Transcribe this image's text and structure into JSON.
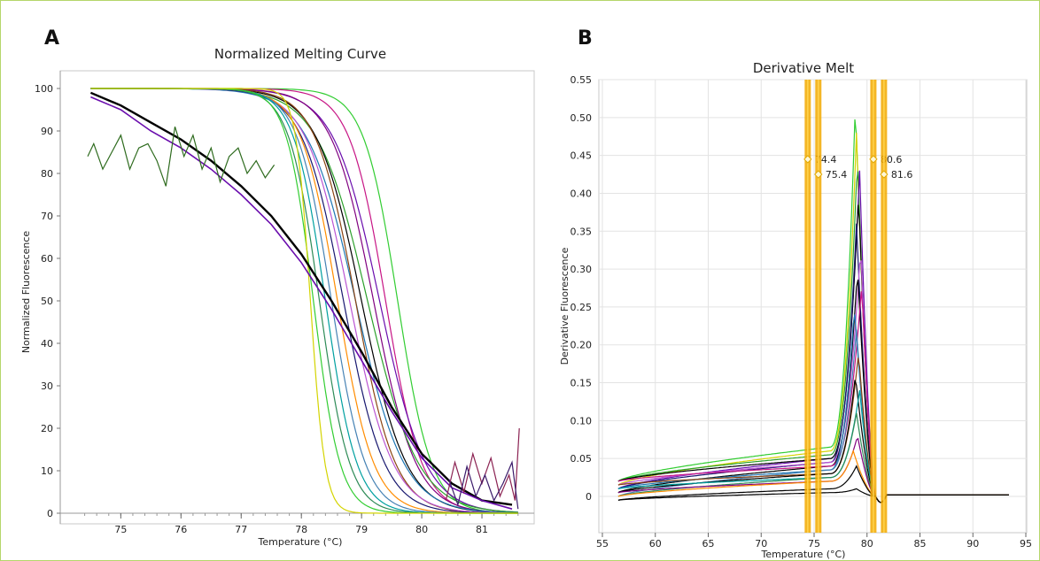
{
  "chart_data": [
    {
      "type": "line",
      "panel_label": "A",
      "title": "Normalized Melting Curve",
      "xlabel": "Temperature (°C)",
      "ylabel": "Normalized Fluorescence",
      "xlim": [
        74.2,
        81.75
      ],
      "ylim": [
        0,
        100
      ],
      "xticks": [
        75,
        76,
        77,
        78,
        79,
        80,
        81
      ],
      "yticks": [
        0,
        10,
        20,
        30,
        40,
        50,
        60,
        70,
        80,
        90,
        100
      ],
      "grid": false,
      "legend": "none",
      "colors": [
        "#2ca02c",
        "#c71585",
        "#1f77b4",
        "#6a0dad",
        "#000000",
        "#d4d400",
        "#2e8b57",
        "#8b4513",
        "#32cd32",
        "#ba55d3",
        "#191970",
        "#ff8c00",
        "#4682b4",
        "#006400",
        "#800080",
        "#00a0a0"
      ],
      "series": [
        {
          "type": "sigmoid",
          "tm": 79.6,
          "width": 0.28,
          "start": 74.5,
          "top": 100,
          "color": "#32cd32"
        },
        {
          "type": "sigmoid",
          "tm": 79.4,
          "width": 0.3,
          "start": 74.5,
          "top": 100,
          "color": "#c71585"
        },
        {
          "type": "sigmoid",
          "tm": 79.3,
          "width": 0.38,
          "start": 74.5,
          "top": 100,
          "color": "#6a0dad"
        },
        {
          "type": "sigmoid",
          "tm": 79.2,
          "width": 0.35,
          "start": 74.5,
          "top": 100,
          "color": "#800080"
        },
        {
          "type": "sigmoid",
          "tm": 79.1,
          "width": 0.42,
          "start": 74.5,
          "top": 100,
          "color": "#2ca02c"
        },
        {
          "type": "sigmoid",
          "tm": 79.0,
          "width": 0.37,
          "start": 74.5,
          "top": 100,
          "color": "#000000"
        },
        {
          "type": "sigmoid",
          "tm": 78.9,
          "width": 0.4,
          "start": 74.5,
          "top": 100,
          "color": "#1f77b4"
        },
        {
          "type": "sigmoid",
          "tm": 78.9,
          "width": 0.33,
          "start": 74.5,
          "top": 100,
          "color": "#8b4513"
        },
        {
          "type": "sigmoid",
          "tm": 78.8,
          "width": 0.36,
          "start": 74.5,
          "top": 100,
          "color": "#ba55d3"
        },
        {
          "type": "sigmoid",
          "tm": 78.7,
          "width": 0.34,
          "start": 74.5,
          "top": 100,
          "color": "#191970"
        },
        {
          "type": "sigmoid",
          "tm": 78.6,
          "width": 0.3,
          "start": 74.5,
          "top": 100,
          "color": "#ff8c00"
        },
        {
          "type": "sigmoid",
          "tm": 78.5,
          "width": 0.28,
          "start": 74.5,
          "top": 100,
          "color": "#4682b4"
        },
        {
          "type": "sigmoid",
          "tm": 78.4,
          "width": 0.26,
          "start": 74.5,
          "top": 100,
          "color": "#00a0a0"
        },
        {
          "type": "sigmoid",
          "tm": 78.3,
          "width": 0.25,
          "start": 74.5,
          "top": 100,
          "color": "#2e8b57"
        },
        {
          "type": "sigmoid",
          "tm": 78.2,
          "width": 0.22,
          "start": 74.5,
          "top": 100,
          "color": "#32cd32"
        },
        {
          "type": "sigmoid",
          "tm": 78.15,
          "width": 0.12,
          "start": 74.5,
          "top": 100,
          "color": "#d4d400"
        },
        {
          "type": "points",
          "color": "#000000",
          "width": 2.4,
          "x": [
            74.5,
            75.0,
            75.5,
            76.0,
            76.5,
            77.0,
            77.5,
            78.0,
            78.5,
            79.0,
            79.5,
            80.0,
            80.5,
            81.0,
            81.5
          ],
          "y": [
            99,
            96,
            92,
            88,
            83,
            77,
            70,
            61,
            50,
            38,
            25,
            14,
            7,
            3,
            2
          ]
        },
        {
          "type": "points",
          "color": "#6a0dad",
          "width": 1.6,
          "x": [
            74.5,
            75.0,
            75.5,
            76.0,
            76.5,
            77.0,
            77.5,
            78.0,
            78.5,
            79.0,
            79.5,
            80.0,
            80.5,
            81.0,
            81.5
          ],
          "y": [
            98,
            95,
            90,
            86,
            81,
            75,
            68,
            59,
            48,
            36,
            24,
            13,
            6,
            3,
            1
          ]
        },
        {
          "type": "points",
          "color": "#2e6b1e",
          "width": 1.2,
          "x": [
            74.45,
            74.55,
            74.7,
            74.85,
            75.0,
            75.15,
            75.3,
            75.45,
            75.6,
            75.75,
            75.9,
            76.05,
            76.2,
            76.35,
            76.5,
            76.65,
            76.8,
            76.95,
            77.1,
            77.25,
            77.4,
            77.55
          ],
          "y": [
            84,
            87,
            81,
            85,
            89,
            81,
            86,
            87,
            83,
            77,
            91,
            84,
            89,
            81,
            86,
            78,
            84,
            86,
            80,
            83,
            79,
            82
          ]
        },
        {
          "type": "points",
          "color": "#8b2252",
          "width": 1.2,
          "x": [
            80.4,
            80.55,
            80.7,
            80.85,
            81.0,
            81.15,
            81.3,
            81.45,
            81.55,
            81.62
          ],
          "y": [
            3,
            12,
            5,
            14,
            7,
            13,
            4,
            9,
            3,
            20
          ]
        },
        {
          "type": "points",
          "color": "#3a1a6a",
          "width": 1.2,
          "x": [
            80.45,
            80.6,
            80.75,
            80.9,
            81.05,
            81.2,
            81.35,
            81.5,
            81.6
          ],
          "y": [
            8,
            2,
            11,
            4,
            9,
            3,
            7,
            12,
            1
          ]
        }
      ]
    },
    {
      "type": "line",
      "panel_label": "B",
      "title": "Derivative Melt",
      "xlabel": "Temperature (°C)",
      "ylabel": "Derivative Fluorescence",
      "xlim": [
        55,
        95
      ],
      "ylim": [
        -0.03,
        0.55
      ],
      "xticks": [
        55,
        60,
        65,
        70,
        75,
        80,
        85,
        90,
        95
      ],
      "yticks": [
        0,
        0.05,
        0.1,
        0.15,
        0.2,
        0.25,
        0.3,
        0.35,
        0.4,
        0.45,
        0.5,
        0.55
      ],
      "ytick_labels": [
        "0",
        "0.05",
        "0.10",
        "0.15",
        "0.20",
        "0.25",
        "0.30",
        "0.35",
        "0.40",
        "0.45",
        "0.50",
        "0.55"
      ],
      "grid": true,
      "legend": "none",
      "markers": [
        {
          "x": 74.4,
          "label": "74.4",
          "y": 0.445
        },
        {
          "x": 75.4,
          "label": "75.4",
          "y": 0.425
        },
        {
          "x": 80.6,
          "label": "80.6",
          "y": 0.445
        },
        {
          "x": 81.6,
          "label": "81.6",
          "y": 0.425
        }
      ],
      "marker_color": "#f2a900",
      "marker_core_color": "#ffd34d",
      "series": [
        {
          "peak_x": 78.9,
          "peak": 0.52,
          "base_start": 0.02,
          "base_end": 0.065,
          "color": "#32cd32"
        },
        {
          "peak_x": 79.0,
          "peak": 0.48,
          "base_start": 0.015,
          "base_end": 0.06,
          "color": "#d4d400"
        },
        {
          "peak_x": 79.1,
          "peak": 0.45,
          "base_start": 0.02,
          "base_end": 0.055,
          "color": "#2ca02c"
        },
        {
          "peak_x": 79.3,
          "peak": 0.43,
          "base_start": 0.01,
          "base_end": 0.05,
          "color": "#6a0dad"
        },
        {
          "peak_x": 79.2,
          "peak": 0.4,
          "base_start": 0.02,
          "base_end": 0.05,
          "color": "#000000"
        },
        {
          "peak_x": 79.0,
          "peak": 0.36,
          "base_start": 0.01,
          "base_end": 0.045,
          "color": "#191970"
        },
        {
          "peak_x": 79.4,
          "peak": 0.33,
          "base_start": 0.015,
          "base_end": 0.045,
          "color": "#ba55d3"
        },
        {
          "peak_x": 79.1,
          "peak": 0.3,
          "base_start": 0.005,
          "base_end": 0.04,
          "color": "#000000"
        },
        {
          "peak_x": 79.5,
          "peak": 0.28,
          "base_start": 0.02,
          "base_end": 0.04,
          "color": "#c71585"
        },
        {
          "peak_x": 78.8,
          "peak": 0.25,
          "base_start": 0.01,
          "base_end": 0.035,
          "color": "#1f77b4"
        },
        {
          "peak_x": 79.0,
          "peak": 0.22,
          "base_start": 0.0,
          "base_end": 0.035,
          "color": "#4682b4"
        },
        {
          "peak_x": 79.2,
          "peak": 0.19,
          "base_start": 0.015,
          "base_end": 0.03,
          "color": "#8b4513"
        },
        {
          "peak_x": 78.9,
          "peak": 0.16,
          "base_start": 0.005,
          "base_end": 0.03,
          "color": "#000000"
        },
        {
          "peak_x": 79.3,
          "peak": 0.14,
          "base_start": 0.01,
          "base_end": 0.025,
          "color": "#00a0a0"
        },
        {
          "peak_x": 79.0,
          "peak": 0.11,
          "base_start": 0.0,
          "base_end": 0.025,
          "color": "#2e8b57"
        },
        {
          "peak_x": 79.1,
          "peak": 0.08,
          "base_start": 0.005,
          "base_end": 0.02,
          "color": "#800080"
        },
        {
          "peak_x": 78.7,
          "peak": 0.06,
          "base_start": 0.0,
          "base_end": 0.02,
          "color": "#ff8c00"
        },
        {
          "peak_x": 79.0,
          "peak": 0.04,
          "base_start": -0.005,
          "base_end": 0.01,
          "color": "#000000"
        },
        {
          "peak_x": 79.0,
          "peak": 0.01,
          "base_start": -0.005,
          "base_end": 0.005,
          "color": "#000000"
        }
      ]
    }
  ]
}
